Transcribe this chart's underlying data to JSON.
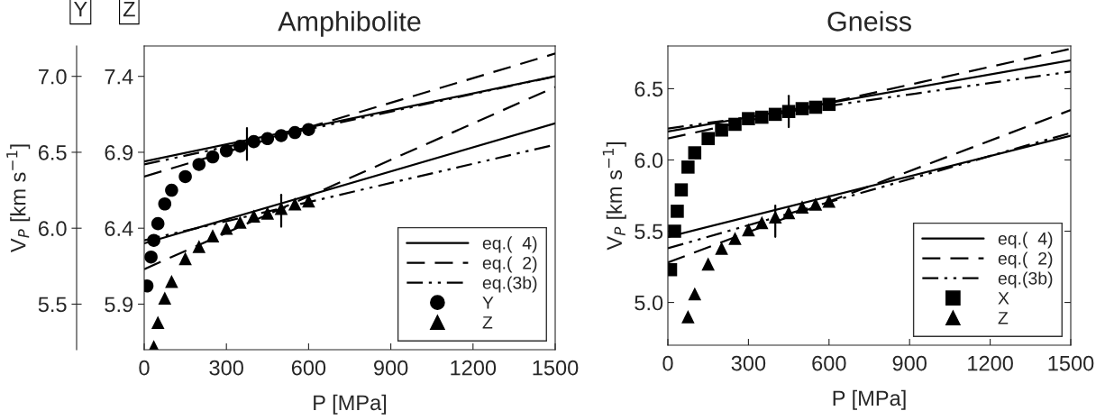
{
  "chart_data": [
    {
      "type": "line",
      "title": "Amphibolite",
      "xlabel": "P [MPa]",
      "y2label": "V$_{P}$ [km s$^{−1}$]",
      "annotations": [
        "Y",
        "Z"
      ],
      "xlim": [
        0,
        1500
      ],
      "xticks": [
        0,
        300,
        600,
        900,
        1200,
        1500
      ],
      "ylim": [
        5.6,
        7.6
      ],
      "yticks": [
        5.9,
        6.4,
        6.9,
        7.4
      ],
      "y2lim": [
        5.2,
        7.2
      ],
      "y2ticks": [
        5.5,
        {
          "value": 6.0,
          "label": "6.0"
        },
        6.5,
        {
          "value": 7.0,
          "label": "7.0"
        }
      ],
      "grid": false,
      "legend": "bottom right",
      "series": [
        {
          "name": "eq.(  4)",
          "line_style": "solid",
          "marker": "none",
          "color": "#000000",
          "axis": "y2",
          "x": [
            0,
            1500
          ],
          "values": [
            6.44,
            7.0
          ]
        },
        {
          "name": "eq.(  2)",
          "line_style": "dashed",
          "marker": "none",
          "color": "#000000",
          "axis": "y2",
          "x": [
            0,
            1500
          ],
          "values": [
            6.34,
            7.15
          ]
        },
        {
          "name": "eq.(3b)",
          "line_style": "dashdotdot",
          "marker": "none",
          "color": "#000000",
          "axis": "y2",
          "x": [
            0,
            1500
          ],
          "values": [
            6.42,
            7.0
          ]
        },
        {
          "line_style": "solid",
          "marker": "none",
          "color": "#000000",
          "x": [
            0,
            1500
          ],
          "values": [
            6.3,
            7.09
          ]
        },
        {
          "line_style": "dashed",
          "marker": "none",
          "color": "#000000",
          "x": [
            0,
            1500
          ],
          "values": [
            6.13,
            7.33
          ]
        },
        {
          "line_style": "dashdotdot",
          "marker": "none",
          "color": "#000000",
          "x": [
            0,
            1500
          ],
          "values": [
            6.32,
            6.95
          ]
        },
        {
          "line_style": "solid",
          "marker": "none",
          "color": "#000000",
          "axis": "y2",
          "x": [
            375,
            375
          ],
          "values": [
            6.45,
            6.66
          ]
        },
        {
          "line_style": "solid",
          "marker": "none",
          "color": "#000000",
          "x": [
            500,
            500
          ],
          "values": [
            6.41,
            6.62
          ]
        },
        {
          "name": "Y",
          "type": "scatter",
          "marker": "circle",
          "color": "#000000",
          "axis": "y2",
          "x": [
            10,
            25,
            35,
            50,
            75,
            100,
            150,
            200,
            250,
            300,
            350,
            400,
            450,
            500,
            550,
            600
          ],
          "values": [
            5.62,
            5.81,
            5.92,
            6.03,
            6.16,
            6.25,
            6.34,
            6.42,
            6.47,
            6.51,
            6.54,
            6.57,
            6.59,
            6.61,
            6.63,
            6.65
          ]
        },
        {
          "name": "Z",
          "type": "scatter",
          "marker": "triangle",
          "color": "#000000",
          "x": [
            35,
            50,
            75,
            100,
            150,
            200,
            250,
            300,
            350,
            400,
            450,
            500,
            550,
            600
          ],
          "values": [
            5.62,
            5.78,
            5.94,
            6.05,
            6.2,
            6.28,
            6.35,
            6.4,
            6.44,
            6.48,
            6.5,
            6.53,
            6.56,
            6.58
          ]
        }
      ]
    },
    {
      "type": "line",
      "title": "Gneiss",
      "xlabel": "P [MPa]",
      "ylabel": "V$_{P}$ [km s$^{−1}$]",
      "xlim": [
        0,
        1500
      ],
      "xticks": [
        0,
        300,
        600,
        900,
        1200,
        1500
      ],
      "ylim": [
        4.7,
        6.8
      ],
      "yticks": [
        {
          "value": 5.0,
          "label": "5.0"
        },
        5.5,
        {
          "value": 6.0,
          "label": "6.0"
        },
        6.5
      ],
      "grid": false,
      "legend": "bottom right",
      "series": [
        {
          "name": "eq.(  4)",
          "line_style": "solid",
          "marker": "none",
          "color": "#000000",
          "x": [
            0,
            1500
          ],
          "values": [
            6.2,
            6.7
          ]
        },
        {
          "name": "eq.(  2)",
          "line_style": "dashed",
          "marker": "none",
          "color": "#000000",
          "x": [
            0,
            1500
          ],
          "values": [
            6.15,
            6.78
          ]
        },
        {
          "name": "eq.(3b)",
          "line_style": "dashdotdot",
          "marker": "none",
          "color": "#000000",
          "x": [
            0,
            1500
          ],
          "values": [
            6.22,
            6.62
          ]
        },
        {
          "line_style": "solid",
          "marker": "none",
          "color": "#000000",
          "x": [
            0,
            1500
          ],
          "values": [
            5.46,
            6.17
          ]
        },
        {
          "line_style": "dashed",
          "marker": "none",
          "color": "#000000",
          "x": [
            0,
            1500
          ],
          "values": [
            5.28,
            6.35
          ]
        },
        {
          "line_style": "dashdotdot",
          "marker": "none",
          "color": "#000000",
          "x": [
            0,
            1500
          ],
          "values": [
            5.38,
            6.19
          ]
        },
        {
          "line_style": "solid",
          "marker": "none",
          "color": "#000000",
          "x": [
            450,
            450
          ],
          "values": [
            6.23,
            6.45
          ]
        },
        {
          "line_style": "solid",
          "marker": "none",
          "color": "#000000",
          "x": [
            400,
            400
          ],
          "values": [
            5.46,
            5.68
          ]
        },
        {
          "name": "X",
          "type": "scatter",
          "marker": "square",
          "color": "#000000",
          "x": [
            10,
            25,
            35,
            50,
            75,
            100,
            150,
            200,
            250,
            300,
            350,
            400,
            450,
            500,
            550,
            600
          ],
          "values": [
            5.23,
            5.5,
            5.64,
            5.79,
            5.95,
            6.05,
            6.15,
            6.21,
            6.25,
            6.29,
            6.3,
            6.32,
            6.34,
            6.36,
            6.37,
            6.39
          ]
        },
        {
          "name": "Z",
          "type": "scatter",
          "marker": "triangle",
          "color": "#000000",
          "x": [
            75,
            100,
            150,
            200,
            250,
            300,
            350,
            400,
            450,
            500,
            550,
            600
          ],
          "values": [
            4.9,
            5.06,
            5.27,
            5.38,
            5.45,
            5.51,
            5.56,
            5.6,
            5.63,
            5.67,
            5.69,
            5.71
          ]
        }
      ]
    }
  ]
}
